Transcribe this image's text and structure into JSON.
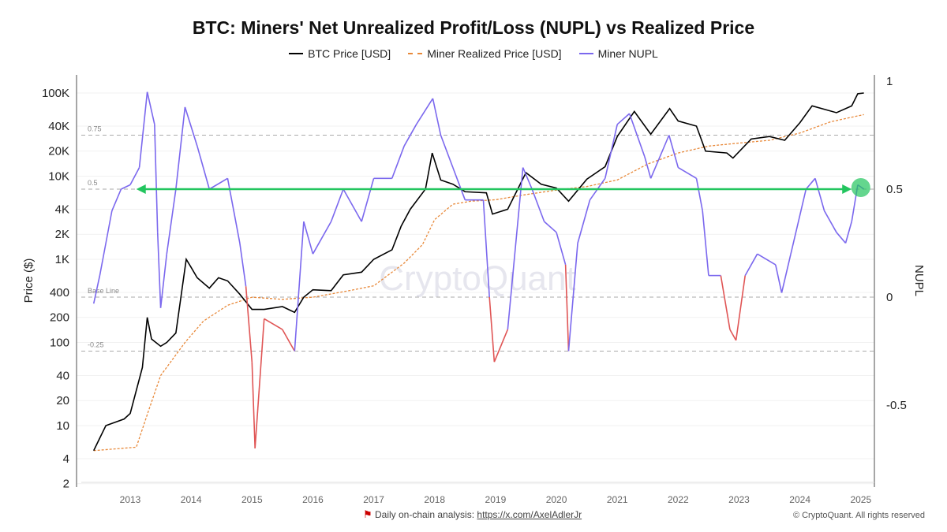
{
  "chart_data": {
    "type": "line",
    "title": "BTC: Miners' Net Unrealized Profit/Loss (NUPL) vs Realized Price",
    "ylabel": "Price ($)",
    "y2label": "NUPL",
    "yscale": "log",
    "ylim": [
      2,
      150000
    ],
    "y2lim": [
      -0.87,
      1.05
    ],
    "xlim": [
      2012.0,
      2025.3
    ],
    "grid": true,
    "legend": "top",
    "yticks": [
      "100K",
      "40K",
      "20K",
      "10K",
      "4K",
      "2K",
      "1K",
      "400",
      "200",
      "100",
      "40",
      "20",
      "10",
      "4",
      "2"
    ],
    "ytick_values": [
      100000,
      40000,
      20000,
      10000,
      4000,
      2000,
      1000,
      400,
      200,
      100,
      40,
      20,
      10,
      4,
      2
    ],
    "y2ticks": [
      "1",
      "0.5",
      "0",
      "-0.5"
    ],
    "y2tick_values": [
      1,
      0.5,
      0,
      -0.5
    ],
    "xticks": [
      "2013",
      "2014",
      "2015",
      "2016",
      "2017",
      "2018",
      "2019",
      "2020",
      "2021",
      "2022",
      "2023",
      "2024",
      "2025"
    ],
    "reference_lines": [
      {
        "label": "0.75",
        "value": 0.75
      },
      {
        "label": "0.5",
        "value": 0.5
      },
      {
        "label": "Base Line",
        "value": 0
      },
      {
        "label": "-0.25",
        "value": -0.25
      }
    ],
    "watermark": "CryptoQuant",
    "annotation": {
      "type": "arrow",
      "value": 0.5,
      "from": 2013.1,
      "to": 2024.85,
      "color": "#22c55e"
    },
    "series": [
      {
        "name": "BTC Price [USD]",
        "axis": "left",
        "color": "#000000",
        "style": "solid",
        "x": [
          2012.4,
          2012.6,
          2012.9,
          2013.0,
          2013.2,
          2013.28,
          2013.35,
          2013.5,
          2013.6,
          2013.75,
          2013.92,
          2014.0,
          2014.1,
          2014.3,
          2014.45,
          2014.6,
          2014.8,
          2015.0,
          2015.2,
          2015.5,
          2015.7,
          2015.85,
          2016.0,
          2016.3,
          2016.5,
          2016.8,
          2017.0,
          2017.3,
          2017.45,
          2017.6,
          2017.85,
          2017.96,
          2018.1,
          2018.3,
          2018.5,
          2018.85,
          2018.95,
          2019.2,
          2019.5,
          2019.75,
          2020.0,
          2020.2,
          2020.5,
          2020.8,
          2021.0,
          2021.28,
          2021.55,
          2021.86,
          2022.0,
          2022.3,
          2022.45,
          2022.8,
          2022.9,
          2023.2,
          2023.5,
          2023.75,
          2024.0,
          2024.2,
          2024.6,
          2024.85,
          2024.95,
          2025.05
        ],
        "y": [
          5,
          10,
          12,
          14,
          50,
          200,
          110,
          90,
          100,
          130,
          1000,
          800,
          600,
          450,
          600,
          550,
          380,
          250,
          250,
          270,
          230,
          350,
          430,
          420,
          650,
          700,
          1000,
          1300,
          2500,
          4000,
          7000,
          19000,
          9000,
          8000,
          6500,
          6300,
          3500,
          4000,
          11000,
          8000,
          7200,
          5000,
          9200,
          13000,
          30000,
          60000,
          32000,
          65000,
          46000,
          40000,
          20000,
          19000,
          16500,
          28000,
          30000,
          27000,
          44000,
          70000,
          58000,
          70000,
          98000,
          100000
        ]
      },
      {
        "name": "Miner Realized Price [USD]",
        "axis": "left",
        "color": "#e8893a",
        "style": "dashed",
        "x": [
          2012.4,
          2013.1,
          2013.3,
          2013.5,
          2013.9,
          2014.2,
          2014.6,
          2015.0,
          2015.5,
          2016.0,
          2016.6,
          2017.0,
          2017.5,
          2017.8,
          2018.0,
          2018.3,
          2018.6,
          2019.0,
          2019.5,
          2020.0,
          2020.5,
          2021.0,
          2021.5,
          2022.0,
          2022.5,
          2023.0,
          2023.5,
          2024.0,
          2024.5,
          2025.05
        ],
        "y": [
          5,
          5.5,
          15,
          40,
          100,
          180,
          280,
          350,
          330,
          350,
          420,
          480,
          900,
          1500,
          3000,
          4600,
          5000,
          5200,
          6000,
          6800,
          7500,
          9000,
          14000,
          19000,
          23000,
          25000,
          27000,
          33000,
          45000,
          55000
        ]
      },
      {
        "name": "Miner NUPL",
        "axis": "right",
        "color": "#7b68ee",
        "negative_color": "#e05555",
        "style": "solid",
        "x": [
          2012.4,
          2012.5,
          2012.7,
          2012.85,
          2013.0,
          2013.15,
          2013.28,
          2013.4,
          2013.45,
          2013.5,
          2013.6,
          2013.75,
          2013.9,
          2014.1,
          2014.3,
          2014.6,
          2014.8,
          2014.9,
          2015.0,
          2015.05,
          2015.2,
          2015.5,
          2015.7,
          2015.85,
          2016.0,
          2016.3,
          2016.5,
          2016.8,
          2017.0,
          2017.3,
          2017.5,
          2017.7,
          2017.97,
          2018.1,
          2018.3,
          2018.5,
          2018.8,
          2018.9,
          2018.98,
          2019.2,
          2019.45,
          2019.6,
          2019.8,
          2020.0,
          2020.15,
          2020.2,
          2020.35,
          2020.55,
          2020.8,
          2021.0,
          2021.2,
          2021.45,
          2021.55,
          2021.85,
          2022.0,
          2022.3,
          2022.4,
          2022.5,
          2022.7,
          2022.85,
          2022.95,
          2023.1,
          2023.3,
          2023.6,
          2023.7,
          2023.85,
          2024.1,
          2024.25,
          2024.4,
          2024.6,
          2024.75,
          2024.85,
          2024.95,
          2025.05
        ],
        "y": [
          -0.03,
          0.1,
          0.4,
          0.5,
          0.52,
          0.6,
          0.95,
          0.8,
          0.3,
          -0.05,
          0.2,
          0.5,
          0.88,
          0.7,
          0.5,
          0.55,
          0.25,
          0.05,
          -0.3,
          -0.7,
          -0.1,
          -0.15,
          -0.25,
          0.35,
          0.2,
          0.35,
          0.5,
          0.35,
          0.55,
          0.55,
          0.7,
          0.8,
          0.92,
          0.75,
          0.6,
          0.45,
          0.45,
          0.0,
          -0.3,
          -0.15,
          0.6,
          0.5,
          0.35,
          0.3,
          0.15,
          -0.25,
          0.25,
          0.45,
          0.55,
          0.8,
          0.85,
          0.65,
          0.55,
          0.75,
          0.6,
          0.55,
          0.4,
          0.1,
          0.1,
          -0.15,
          -0.2,
          0.1,
          0.2,
          0.15,
          0.02,
          0.2,
          0.5,
          0.55,
          0.4,
          0.3,
          0.25,
          0.35,
          0.52,
          0.5
        ]
      }
    ]
  },
  "footer": {
    "analysis_label": "Daily on-chain analysis:",
    "analysis_link": "https://x.com/AxelAdlerJr",
    "copyright": "© CryptoQuant. All rights reserved"
  }
}
